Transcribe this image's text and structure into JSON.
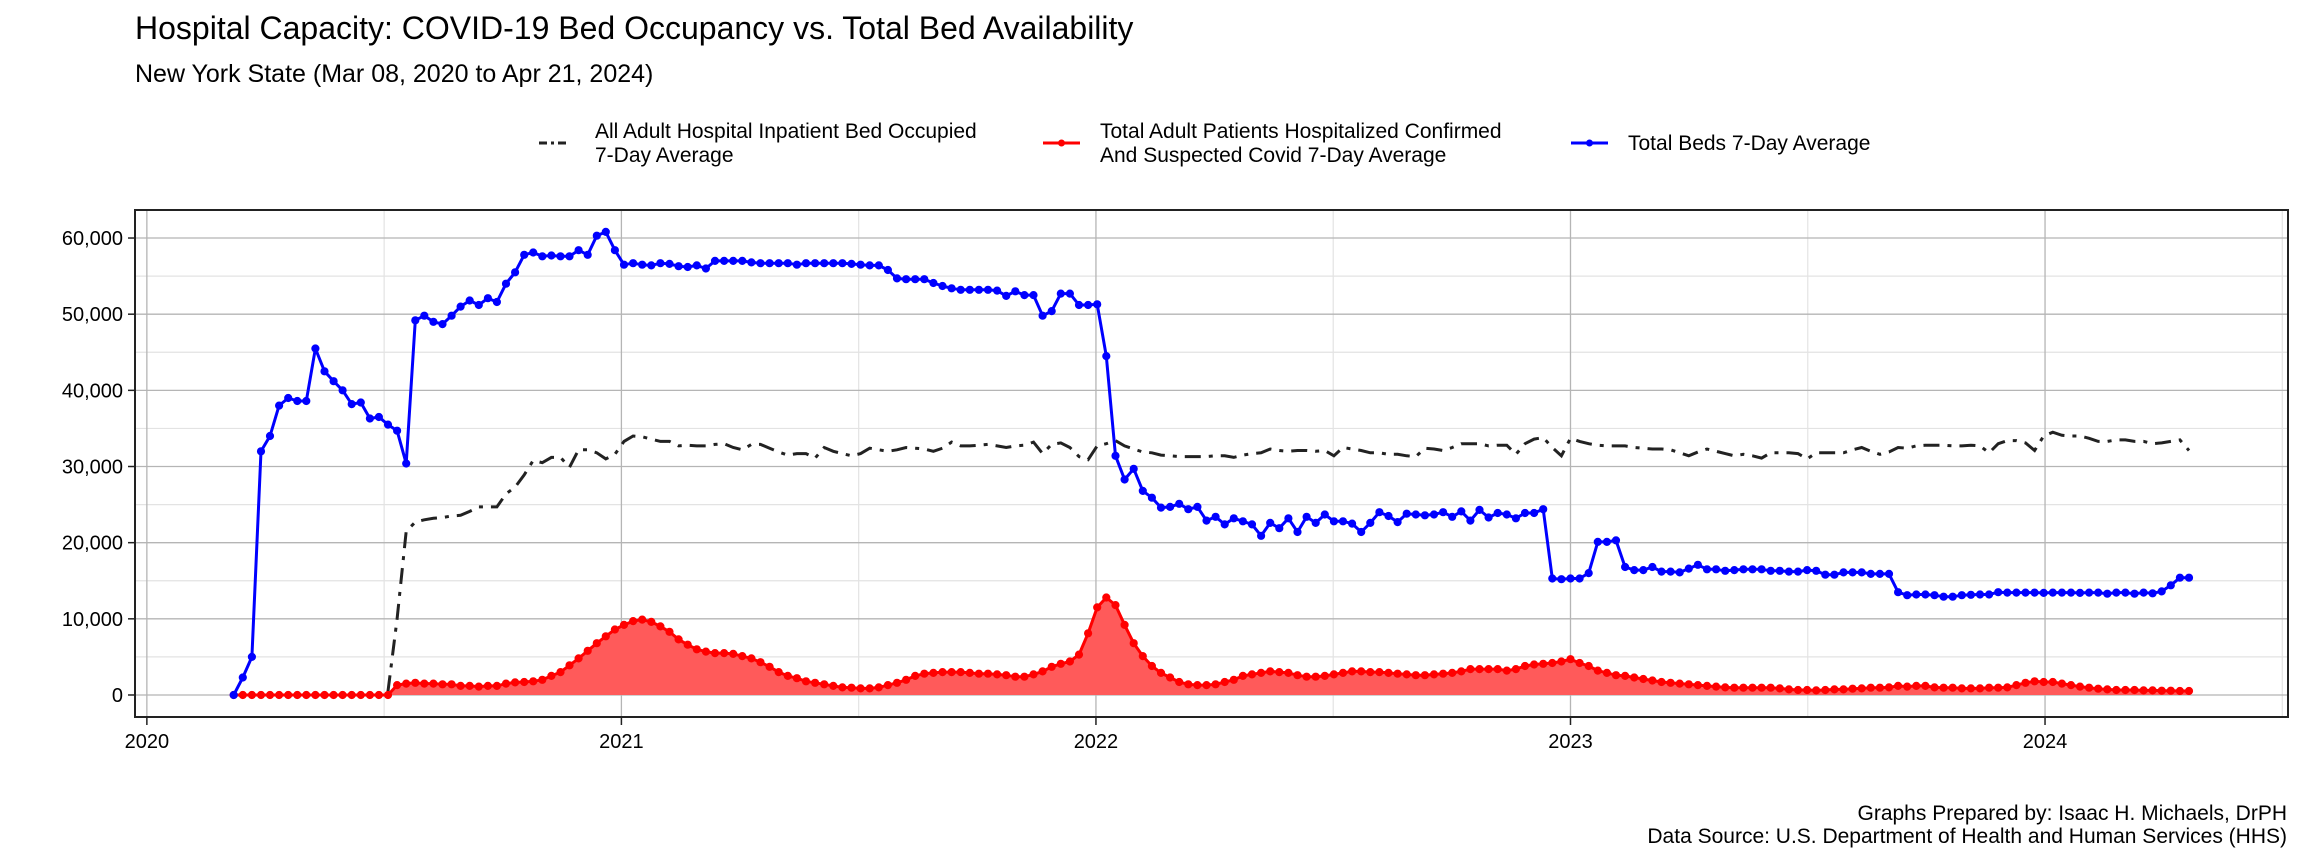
{
  "title": "Hospital Capacity: COVID-19 Bed Occupancy vs. Total Bed Availability",
  "subtitle": "New York State (Mar 08, 2020 to Apr 21, 2024)",
  "caption": {
    "line1": "Graphs Prepared by: Isaac H. Michaels, DrPH",
    "line2": "Data Source: U.S. Department of Health and Human Services (HHS)"
  },
  "legend": [
    {
      "line1": "All Adult Hospital Inpatient Bed Occupied",
      "line2": "7-Day Average",
      "color": "#222222",
      "style": "dashdot"
    },
    {
      "line1": "Total Adult Patients Hospitalized Confirmed",
      "line2": "And Suspected Covid 7-Day Average",
      "color": "#FF0000",
      "style": "line-point"
    },
    {
      "line1": "Total Beds 7-Day Average",
      "line2": "",
      "color": "#0000FF",
      "style": "line-point"
    }
  ],
  "chart_data": {
    "type": "line",
    "title": "Hospital Capacity: COVID-19 Bed Occupancy vs. Total Bed Availability",
    "xlabel": "",
    "ylabel": "",
    "x_start": "2020-03-08",
    "x_interval_days": 7,
    "xlim": [
      2019.975,
      2024.512
    ],
    "ylim": [
      -2890,
      63680
    ],
    "x_ticks": [
      "2020",
      "2021",
      "2022",
      "2023",
      "2024"
    ],
    "x_tick_values": [
      2020,
      2021,
      2022,
      2023,
      2024
    ],
    "y_ticks": [
      "0",
      "10,000",
      "20,000",
      "30,000",
      "40,000",
      "50,000",
      "60,000"
    ],
    "y_tick_values": [
      0,
      10000,
      20000,
      30000,
      40000,
      50000,
      60000
    ],
    "grid": true,
    "legend_position": "top",
    "series": [
      {
        "name": "All Adult Hospital Inpatient Bed Occupied 7-Day Average",
        "color": "#222222",
        "values": [
          null,
          null,
          null,
          null,
          null,
          null,
          null,
          null,
          null,
          null,
          null,
          null,
          null,
          null,
          null,
          null,
          null,
          500,
          10000,
          21500,
          22700,
          23000,
          23200,
          23300,
          23500,
          23600,
          24100,
          24700,
          24700,
          24700,
          26400,
          27300,
          28900,
          30800,
          30500,
          31200,
          31200,
          29900,
          32200,
          32200,
          31800,
          31000,
          31600,
          33300,
          34000,
          33900,
          33600,
          33300,
          33300,
          32700,
          32800,
          32700,
          32700,
          32900,
          33000,
          32500,
          32200,
          32900,
          32900,
          32400,
          31900,
          31500,
          31700,
          31700,
          31100,
          32500,
          32000,
          31700,
          31400,
          31700,
          32400,
          32200,
          32000,
          32200,
          32500,
          32400,
          32300,
          32000,
          32400,
          33200,
          32700,
          32700,
          32800,
          32900,
          32700,
          32500,
          32700,
          32800,
          33200,
          31700,
          32900,
          33100,
          32500,
          31300,
          30900,
          32700,
          33000,
          33400,
          32700,
          32300,
          31900,
          31800,
          31500,
          31400,
          31300,
          31300,
          31300,
          31300,
          31400,
          31400,
          31200,
          31500,
          31700,
          31800,
          32300,
          32100,
          32000,
          32100,
          32100,
          32000,
          32100,
          31400,
          32500,
          32300,
          32100,
          31800,
          31800,
          31600,
          31600,
          31400,
          31300,
          32400,
          32300,
          32100,
          32500,
          33000,
          33000,
          33000,
          32700,
          32800,
          32800,
          31600,
          33000,
          33600,
          33800,
          32500,
          31400,
          33700,
          33300,
          33000,
          32800,
          32700,
          32700,
          32700,
          32500,
          32400,
          32300,
          32300,
          32200,
          31800,
          31400,
          31900,
          32300,
          32000,
          31700,
          31400,
          31600,
          31400,
          31100,
          31800,
          31800,
          31800,
          31700,
          31000,
          31800,
          31800,
          31800,
          31800,
          32200,
          32500,
          32000,
          31600,
          31900,
          32500,
          32400,
          32700,
          32800,
          32800,
          32800,
          32700,
          32700,
          32800,
          32700,
          31800,
          33000,
          33400,
          33400,
          33100,
          32100,
          34000,
          34500,
          34100,
          34000,
          34000,
          33700,
          33300,
          33300,
          33500,
          33500,
          33300,
          33300,
          33000,
          33100,
          33300,
          33500,
          32100
        ]
      },
      {
        "name": "Total Adult Patients Hospitalized Confirmed And Suspected Covid 7-Day Average",
        "color": "#FF0000",
        "fill": "#FF5A5A",
        "values": [
          0,
          0,
          0,
          0,
          0,
          0,
          0,
          0,
          0,
          0,
          0,
          0,
          0,
          0,
          0,
          0,
          0,
          0,
          1300,
          1500,
          1600,
          1500,
          1500,
          1400,
          1400,
          1200,
          1200,
          1100,
          1200,
          1200,
          1500,
          1650,
          1700,
          1800,
          2000,
          2500,
          3000,
          3900,
          4800,
          5800,
          6800,
          7700,
          8600,
          9200,
          9700,
          9900,
          9600,
          9000,
          8300,
          7300,
          6600,
          6000,
          5700,
          5500,
          5500,
          5400,
          5100,
          4800,
          4300,
          3700,
          3000,
          2500,
          2200,
          1800,
          1600,
          1400,
          1200,
          1000,
          960,
          870,
          870,
          1000,
          1300,
          1600,
          2000,
          2500,
          2800,
          2900,
          3000,
          3000,
          3000,
          2900,
          2800,
          2800,
          2700,
          2600,
          2400,
          2400,
          2700,
          3100,
          3700,
          4100,
          4400,
          5300,
          8100,
          11500,
          12800,
          11800,
          9200,
          6800,
          5100,
          3800,
          2900,
          2300,
          1700,
          1400,
          1300,
          1300,
          1400,
          1700,
          2000,
          2500,
          2700,
          2900,
          3100,
          3000,
          2900,
          2600,
          2400,
          2400,
          2500,
          2700,
          2900,
          3100,
          3100,
          3000,
          3000,
          2900,
          2800,
          2700,
          2600,
          2600,
          2700,
          2800,
          2900,
          3100,
          3400,
          3400,
          3400,
          3400,
          3200,
          3400,
          3800,
          4000,
          4100,
          4200,
          4400,
          4700,
          4200,
          3800,
          3200,
          2900,
          2600,
          2500,
          2300,
          2100,
          1900,
          1700,
          1600,
          1500,
          1400,
          1300,
          1200,
          1100,
          1000,
          960,
          960,
          960,
          960,
          960,
          870,
          740,
          650,
          650,
          600,
          650,
          740,
          740,
          830,
          870,
          960,
          960,
          1000,
          1200,
          1100,
          1200,
          1200,
          1000,
          960,
          960,
          870,
          870,
          870,
          960,
          960,
          1000,
          1300,
          1600,
          1800,
          1700,
          1700,
          1500,
          1300,
          1100,
          960,
          830,
          740,
          650,
          650,
          650,
          600,
          600,
          560,
          560,
          520,
          520
        ]
      },
      {
        "name": "Total Beds 7-Day Average",
        "color": "#0000FF",
        "values": [
          0,
          2300,
          5000,
          32000,
          34000,
          38000,
          39000,
          38600,
          38600,
          45500,
          42500,
          41200,
          40000,
          38200,
          38400,
          36300,
          36500,
          35500,
          34700,
          30400,
          49200,
          49800,
          49000,
          48700,
          49800,
          51000,
          51800,
          51200,
          52100,
          51600,
          54000,
          55500,
          57800,
          58100,
          57600,
          57700,
          57600,
          57600,
          58400,
          57800,
          60300,
          60800,
          58400,
          56500,
          56700,
          56500,
          56400,
          56700,
          56600,
          56300,
          56200,
          56400,
          56000,
          57000,
          57000,
          57000,
          57000,
          56800,
          56700,
          56700,
          56700,
          56700,
          56500,
          56700,
          56700,
          56700,
          56700,
          56700,
          56600,
          56500,
          56400,
          56400,
          55800,
          54700,
          54600,
          54600,
          54600,
          54100,
          53700,
          53400,
          53200,
          53200,
          53200,
          53200,
          53100,
          52400,
          53000,
          52500,
          52500,
          49800,
          50400,
          52700,
          52700,
          51200,
          51200,
          51300,
          44500,
          31400,
          28300,
          29700,
          26800,
          25900,
          24600,
          24700,
          25100,
          24400,
          24700,
          22900,
          23400,
          22400,
          23200,
          22800,
          22400,
          20900,
          22600,
          21900,
          23200,
          21400,
          23400,
          22600,
          23700,
          22800,
          22800,
          22500,
          21400,
          22600,
          24000,
          23500,
          22700,
          23800,
          23700,
          23600,
          23700,
          24000,
          23400,
          24100,
          22900,
          24300,
          23300,
          23900,
          23700,
          23200,
          23900,
          23900,
          24400,
          15300,
          15200,
          15300,
          15300,
          16000,
          20100,
          20100,
          20300,
          16800,
          16400,
          16400,
          16800,
          16200,
          16200,
          16100,
          16600,
          17100,
          16500,
          16500,
          16300,
          16400,
          16500,
          16500,
          16500,
          16300,
          16300,
          16200,
          16200,
          16400,
          16300,
          15800,
          15800,
          16100,
          16100,
          16100,
          15900,
          15900,
          15900,
          13500,
          13100,
          13200,
          13200,
          13100,
          12900,
          12900,
          13100,
          13150,
          13200,
          13200,
          13500,
          13450,
          13450,
          13450,
          13450,
          13400,
          13450,
          13450,
          13450,
          13400,
          13450,
          13450,
          13300,
          13450,
          13450,
          13300,
          13450,
          13350,
          13600,
          14400,
          15400,
          15400
        ]
      }
    ]
  }
}
